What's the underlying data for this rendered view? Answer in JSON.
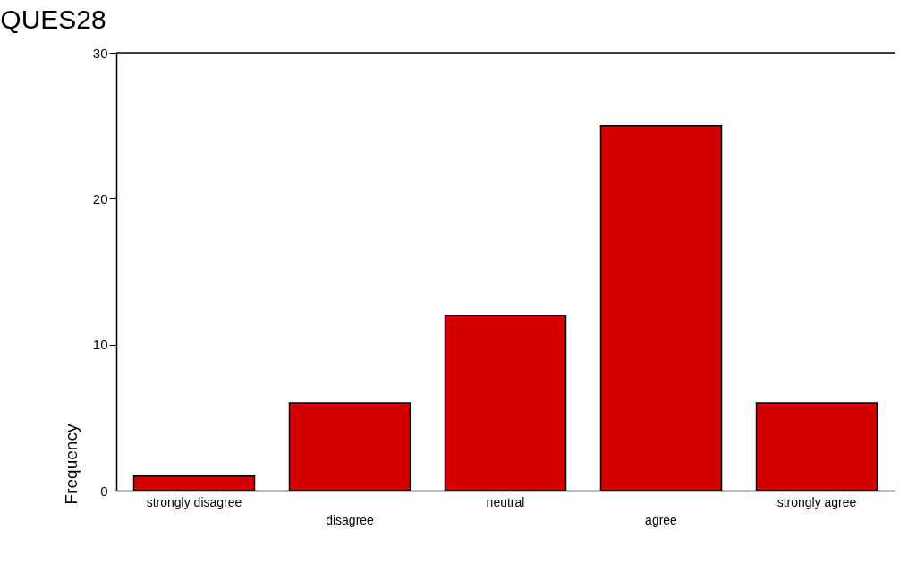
{
  "chart_data": {
    "type": "bar",
    "title": "QUES28",
    "ylabel": "Frequency",
    "categories": [
      "strongly disagree",
      "disagree",
      "neutral",
      "agree",
      "strongly agree"
    ],
    "values": [
      1,
      6,
      12,
      25,
      6
    ],
    "color": "#d40000",
    "ylim": [
      0,
      30
    ],
    "yticks": [
      0,
      10,
      20,
      30
    ],
    "grid": false
  }
}
